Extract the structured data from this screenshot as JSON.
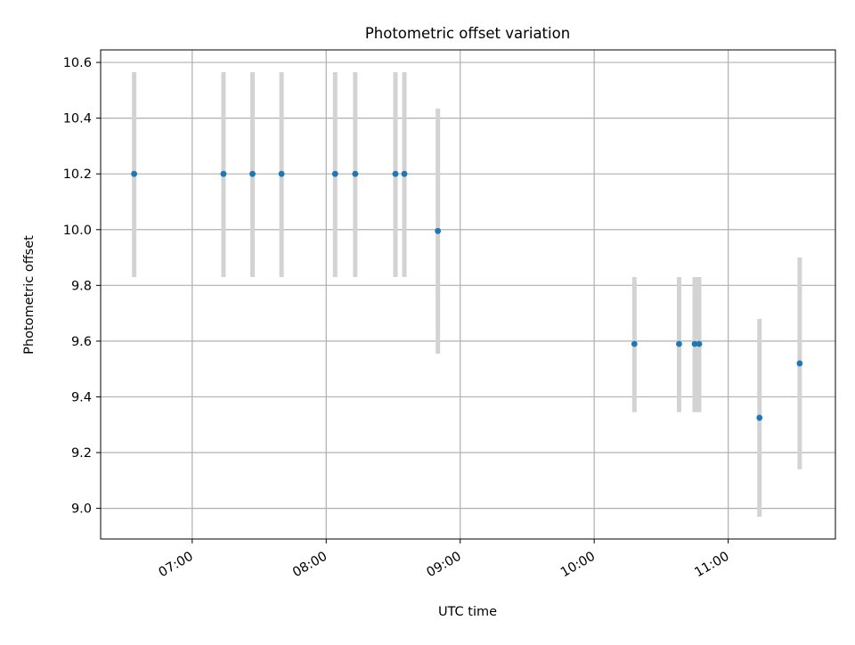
{
  "chart_data": {
    "type": "scatter",
    "title": "Photometric offset variation",
    "xlabel": "UTC time",
    "ylabel": "Photometric offset",
    "x_ticks": [
      "07:00",
      "08:00",
      "09:00",
      "10:00",
      "11:00"
    ],
    "y_ticks": [
      "9.0",
      "9.2",
      "9.4",
      "9.6",
      "9.8",
      "10.0",
      "10.2",
      "10.4",
      "10.6"
    ],
    "xlim": [
      "06:19",
      "11:48"
    ],
    "ylim": [
      8.89,
      10.645
    ],
    "grid": true,
    "colors": {
      "point": "#1f77b4",
      "errorbar": "#d3d3d3",
      "grid": "#b0b0b0"
    },
    "points": [
      {
        "x": "06:34",
        "y": 10.2,
        "yerr_low": 9.83,
        "yerr_high": 10.565
      },
      {
        "x": "07:14",
        "y": 10.2,
        "yerr_low": 9.83,
        "yerr_high": 10.565
      },
      {
        "x": "07:27",
        "y": 10.2,
        "yerr_low": 9.83,
        "yerr_high": 10.565
      },
      {
        "x": "07:40",
        "y": 10.2,
        "yerr_low": 9.83,
        "yerr_high": 10.565
      },
      {
        "x": "08:04",
        "y": 10.2,
        "yerr_low": 9.83,
        "yerr_high": 10.565
      },
      {
        "x": "08:13",
        "y": 10.2,
        "yerr_low": 9.83,
        "yerr_high": 10.565
      },
      {
        "x": "08:31",
        "y": 10.2,
        "yerr_low": 9.83,
        "yerr_high": 10.565
      },
      {
        "x": "08:35",
        "y": 10.2,
        "yerr_low": 9.83,
        "yerr_high": 10.565
      },
      {
        "x": "08:50",
        "y": 9.995,
        "yerr_low": 9.555,
        "yerr_high": 10.435
      },
      {
        "x": "10:18",
        "y": 9.59,
        "yerr_low": 9.345,
        "yerr_high": 9.83
      },
      {
        "x": "10:38",
        "y": 9.59,
        "yerr_low": 9.345,
        "yerr_high": 9.83
      },
      {
        "x": "10:45",
        "y": 9.59,
        "yerr_low": 9.345,
        "yerr_high": 9.83
      },
      {
        "x": "10:47",
        "y": 9.59,
        "yerr_low": 9.345,
        "yerr_high": 9.83
      },
      {
        "x": "11:14",
        "y": 9.325,
        "yerr_low": 8.97,
        "yerr_high": 9.68
      },
      {
        "x": "11:32",
        "y": 9.52,
        "yerr_low": 9.14,
        "yerr_high": 9.9
      }
    ]
  }
}
